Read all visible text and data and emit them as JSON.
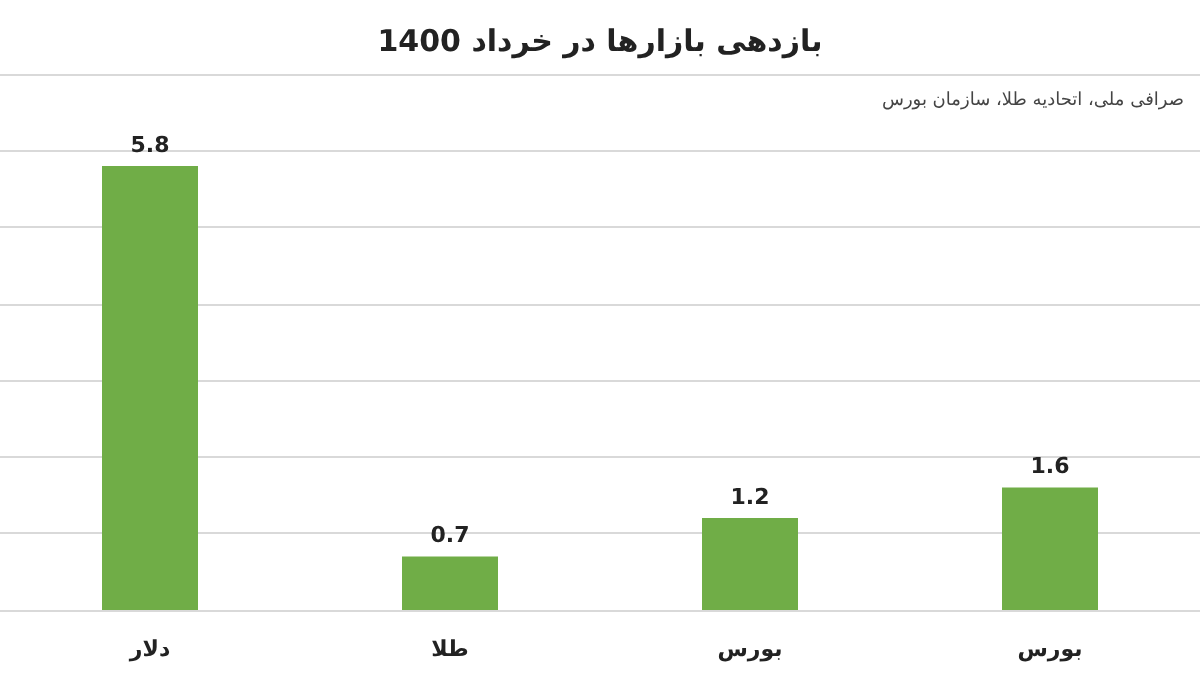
{
  "chart_data": {
    "type": "bar",
    "title": "بازدهی بازارها در خرداد 1400",
    "annotations": [
      "صرافی ملی، اتحادیه طلا، سازمان بورس"
    ],
    "categories": [
      "دلار",
      "طلا",
      "بورس",
      "بورس"
    ],
    "values": [
      5.8,
      0.7,
      1.2,
      1.6
    ],
    "color": "#70ad47",
    "ylim": [
      0,
      7
    ],
    "yticks": [
      {
        "value": 0,
        "label": null
      },
      {
        "value": 1,
        "label": null
      },
      {
        "value": 2,
        "label": null
      },
      {
        "value": 3,
        "label": null
      },
      {
        "value": 4,
        "label": null
      },
      {
        "value": 5,
        "label": null
      },
      {
        "value": 6,
        "label": null
      },
      {
        "value": 7,
        "label": null
      }
    ],
    "tick_labels": "x",
    "grid": "y",
    "data_labels": true
  }
}
